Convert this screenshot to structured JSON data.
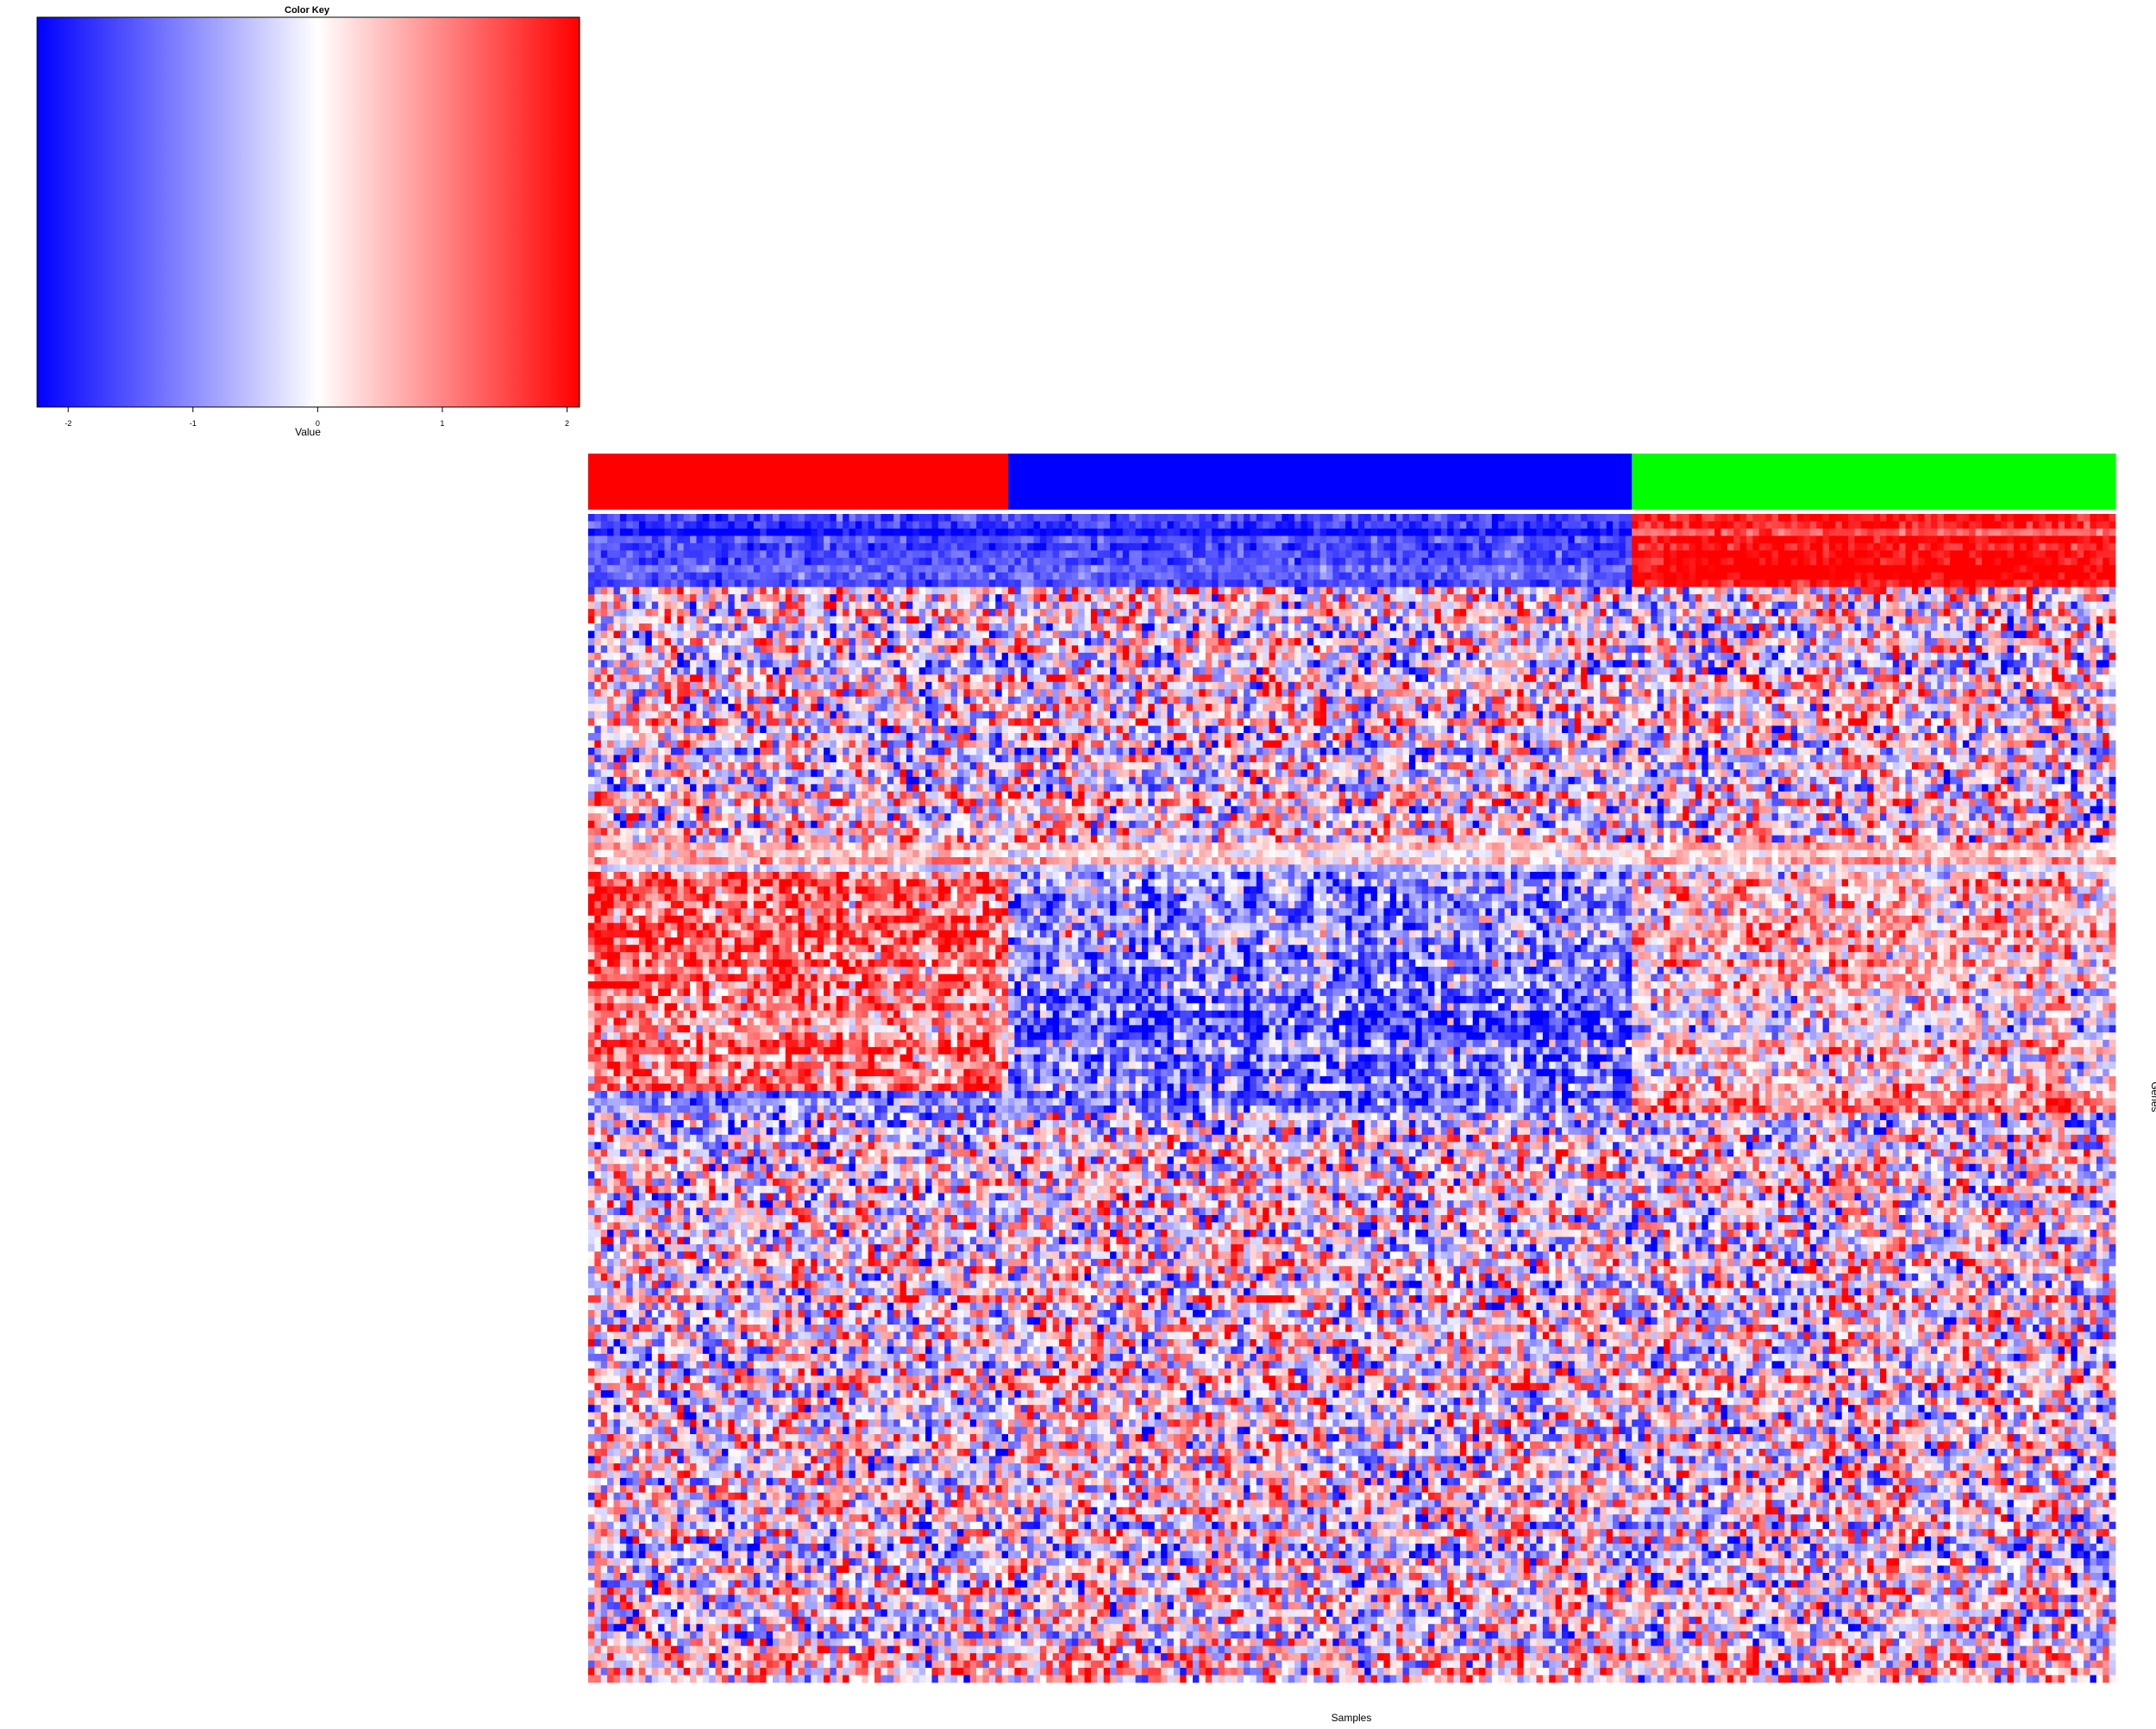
{
  "chart_data": {
    "type": "heatmap",
    "color_key": {
      "title": "Color Key",
      "xlabel": "Value",
      "range": [
        -2.25,
        2.1
      ],
      "ticks": [
        -2,
        -1,
        0,
        1,
        2
      ],
      "tick_labels": [
        "-2",
        "-1",
        "0",
        "1",
        "2"
      ],
      "colors": {
        "low": "#0000ff",
        "mid": "#ffffff",
        "high": "#ff0000"
      }
    },
    "column_groups": [
      {
        "color": "#ff0000",
        "n_samples": 66
      },
      {
        "color": "#0000ff",
        "n_samples": 98
      },
      {
        "color": "#00ff00",
        "n_samples": 76
      }
    ],
    "n_samples": 240,
    "n_genes": 160,
    "xlabel": "Samples",
    "ylabel": "Genes",
    "row_blocks": [
      {
        "rows": 10,
        "group_means": [
          -1.8,
          -1.8,
          1.8
        ],
        "noise": 0.35
      },
      {
        "rows": 35,
        "group_means": [
          0.0,
          0.0,
          0.0
        ],
        "noise": 1.4
      },
      {
        "rows": 4,
        "group_means": [
          0.2,
          -0.1,
          0.2
        ],
        "noise": 0.5
      },
      {
        "rows": 30,
        "group_means": [
          1.2,
          -1.1,
          0.3
        ],
        "noise": 1.0
      },
      {
        "rows": 3,
        "group_means": [
          -1.0,
          -1.2,
          1.0
        ],
        "noise": 0.8
      },
      {
        "rows": 78,
        "group_means": [
          0.0,
          0.05,
          -0.05
        ],
        "noise": 1.4
      }
    ]
  }
}
